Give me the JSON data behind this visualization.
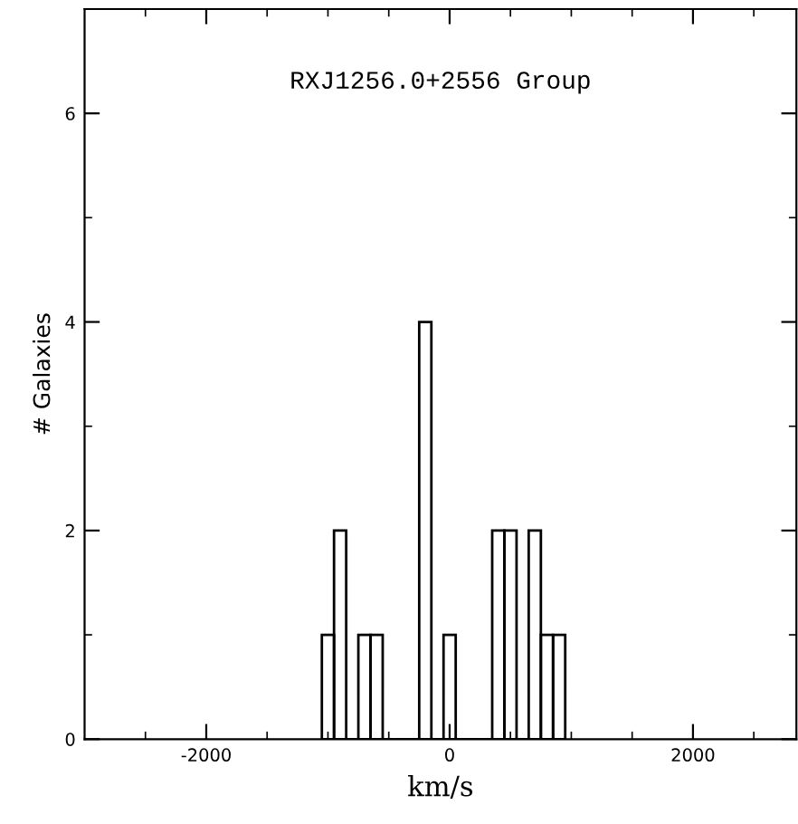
{
  "chart_data": {
    "type": "histogram",
    "title": "RXJ1256.0+2556 Group",
    "xlabel": "km/s",
    "ylabel": "# Galaxies",
    "bins": [
      -1050,
      -950,
      -850,
      -750,
      -650,
      -550,
      -450,
      -350,
      -250,
      -150,
      -50,
      50,
      150,
      250,
      350,
      450,
      550,
      650,
      750,
      850,
      950
    ],
    "values": [
      1,
      2,
      0,
      1,
      1,
      0,
      0,
      0,
      4,
      0,
      1,
      0,
      0,
      0,
      2,
      2,
      0,
      2,
      1,
      1
    ],
    "color": "#000000",
    "xlim": [
      -3000,
      2850
    ],
    "xticks": [
      {
        "value": -2500,
        "label": null
      },
      -2000,
      {
        "value": -1500,
        "label": null
      },
      {
        "value": -1000,
        "label": null
      },
      {
        "value": -500,
        "label": null
      },
      0,
      {
        "value": 500,
        "label": null
      },
      {
        "value": 1000,
        "label": null
      },
      {
        "value": 1500,
        "label": null
      },
      2000,
      {
        "value": 2500,
        "label": null
      }
    ],
    "ylim": [
      0,
      7
    ],
    "yticks": [
      0,
      {
        "value": 1,
        "label": null
      },
      2,
      {
        "value": 3,
        "label": null
      },
      4,
      {
        "value": 5,
        "label": null
      },
      6,
      {
        "value": 7,
        "label": null
      }
    ],
    "grid": false,
    "legend": false
  }
}
